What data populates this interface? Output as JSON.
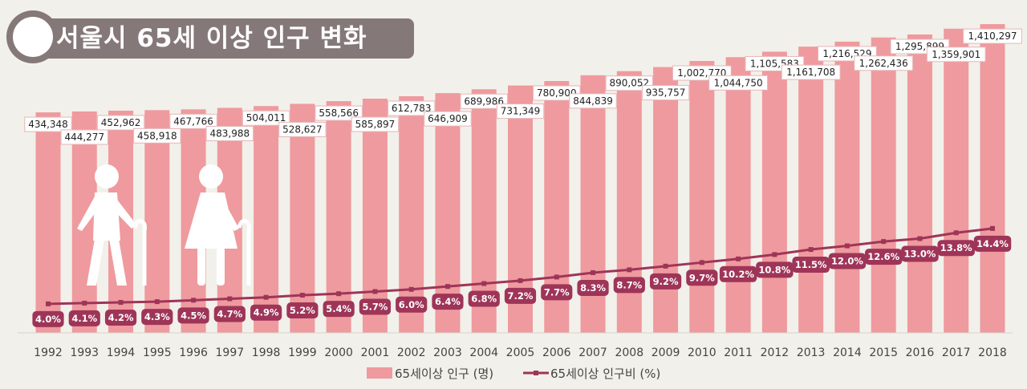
{
  "title": "서울시 65세 이상 인구 변화",
  "colors": {
    "bar": "#ef9a9e",
    "line": "#9e3558",
    "banner": "#857878",
    "background": "#f2f0ea"
  },
  "icons": [
    "elderly-man-with-cane-icon",
    "elderly-woman-with-cane-icon"
  ],
  "chart_data": {
    "type": "bar+line",
    "categories": [
      "1992",
      "1993",
      "1994",
      "1995",
      "1996",
      "1997",
      "1998",
      "1999",
      "2000",
      "2001",
      "2002",
      "2003",
      "2004",
      "2005",
      "2006",
      "2007",
      "2008",
      "2009",
      "2010",
      "2011",
      "2012",
      "2013",
      "2014",
      "2015",
      "2016",
      "2017",
      "2018"
    ],
    "series": [
      {
        "name": "65세이상 인구 (명)",
        "type": "bar",
        "axis": "primary",
        "values": [
          434348,
          444277,
          452962,
          458918,
          467766,
          483988,
          504011,
          528627,
          558566,
          585897,
          612783,
          646909,
          689986,
          731349,
          780900,
          844839,
          890052,
          935757,
          1002770,
          1044750,
          1105583,
          1161708,
          1216529,
          1262436,
          1295899,
          1359901,
          1410297
        ],
        "labels": [
          "434,348",
          "444,277",
          "452,962",
          "458,918",
          "467,766",
          "483,988",
          "504,011",
          "528,627",
          "558,566",
          "585,897",
          "612,783",
          "646,909",
          "689,986",
          "731,349",
          "780,900",
          "844,839",
          "890,052",
          "935,757",
          "1,002,770",
          "1,044,750",
          "1,105,583",
          "1,161,708",
          "1,216,529",
          "1,262,436",
          "1,295,899",
          "1,359,901",
          "1,410,297"
        ]
      },
      {
        "name": "65세이상 인구비 (%)",
        "type": "line",
        "axis": "secondary",
        "values": [
          4.0,
          4.1,
          4.2,
          4.3,
          4.5,
          4.7,
          4.9,
          5.2,
          5.4,
          5.7,
          6.0,
          6.4,
          6.8,
          7.2,
          7.7,
          8.3,
          8.7,
          9.2,
          9.7,
          10.2,
          10.8,
          11.5,
          12.0,
          12.6,
          13.0,
          13.8,
          14.4
        ],
        "labels": [
          "4.0%",
          "4.1%",
          "4.2%",
          "4.3%",
          "4.5%",
          "4.7%",
          "4.9%",
          "5.2%",
          "5.4%",
          "5.7%",
          "6.0%",
          "6.4%",
          "6.8%",
          "7.2%",
          "7.7%",
          "8.3%",
          "8.7%",
          "9.2%",
          "9.7%",
          "10.2%",
          "10.8%",
          "11.5%",
          "12.0%",
          "12.6%",
          "13.0%",
          "13.8%",
          "14.4%"
        ]
      }
    ],
    "grid": false,
    "axes_visible": false,
    "legend": "bottom",
    "legend_labels": {
      "bar": "65세이상 인구 (명)",
      "line": "65세이상 인구비 (%)"
    }
  }
}
